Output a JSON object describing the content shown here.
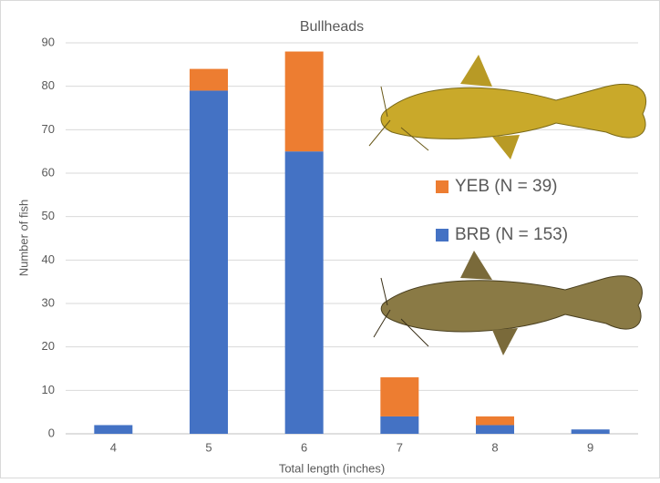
{
  "chart_data": {
    "type": "stacked_bar",
    "title": "Bullheads",
    "x_label": "Total length (inches)",
    "y_label": "Number of fish",
    "categories": [
      "4",
      "5",
      "6",
      "7",
      "8",
      "9"
    ],
    "series": [
      {
        "name": "BRB (N = 153)",
        "color": "#4472c4",
        "values": [
          2,
          79,
          65,
          4,
          2,
          1
        ]
      },
      {
        "name": "YEB (N = 39)",
        "color": "#ed7d31",
        "values": [
          0,
          5,
          23,
          9,
          2,
          0
        ]
      }
    ],
    "ylim": [
      0,
      90
    ],
    "yticks": [
      0,
      10,
      20,
      30,
      40,
      50,
      60,
      70,
      80,
      90
    ],
    "grid": true
  }
}
